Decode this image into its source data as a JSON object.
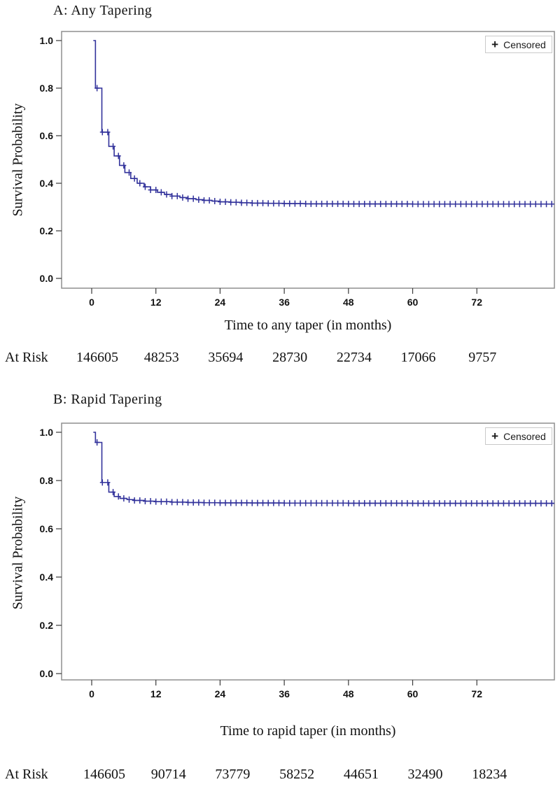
{
  "styles": {
    "curve_color": "#32329b",
    "frame_color": "#8f8f8f",
    "tick_color": "#3a3a3a",
    "text_color": "#111111",
    "legend_border_color": "#c9c9c9",
    "background": "#ffffff"
  },
  "chart_data": [
    {
      "type": "line",
      "subtype": "kaplan-meier-step-curve",
      "title": "A: Any Tapering",
      "xlabel": "Time to any taper (in months)",
      "ylabel": "Survival Probability",
      "xlim": [
        -5.6,
        86.5
      ],
      "ylim": [
        0.0,
        1.0
      ],
      "x_ticks": [
        0,
        12,
        24,
        36,
        48,
        60,
        72
      ],
      "y_ticks": [
        0.0,
        0.2,
        0.4,
        0.6,
        0.8,
        1.0
      ],
      "grid": false,
      "legend": {
        "marker": "+",
        "label": "Censored",
        "position": "top-right-inset"
      },
      "series": [
        {
          "name": "Survival",
          "steps": [
            [
              0.3,
              1.0
            ],
            [
              0.7,
              0.8
            ],
            [
              1.9,
              0.615
            ],
            [
              3.2,
              0.555
            ],
            [
              4.2,
              0.515
            ],
            [
              5.2,
              0.475
            ],
            [
              6.2,
              0.445
            ],
            [
              7.3,
              0.42
            ],
            [
              8.5,
              0.4
            ],
            [
              9.8,
              0.385
            ],
            [
              11,
              0.372
            ],
            [
              12.3,
              0.362
            ],
            [
              13.6,
              0.353
            ],
            [
              15,
              0.346
            ],
            [
              16.5,
              0.34
            ],
            [
              18,
              0.335
            ],
            [
              19.5,
              0.331
            ],
            [
              21,
              0.328
            ],
            [
              22.5,
              0.325
            ],
            [
              24,
              0.322
            ],
            [
              26,
              0.32
            ],
            [
              28,
              0.318
            ],
            [
              30,
              0.3165
            ],
            [
              33,
              0.3155
            ],
            [
              36,
              0.3145
            ],
            [
              40,
              0.3135
            ],
            [
              48,
              0.313
            ],
            [
              60,
              0.3125
            ]
          ]
        }
      ],
      "censor_marks_monthly": {
        "from": 1,
        "to": 86,
        "step": 1
      },
      "at_risk": {
        "label": "At Risk",
        "times": [
          0,
          12,
          24,
          36,
          48,
          60,
          72
        ],
        "values": [
          "146605",
          "48253",
          "35694",
          "28730",
          "22734",
          "17066",
          "9757"
        ]
      }
    },
    {
      "type": "line",
      "subtype": "kaplan-meier-step-curve",
      "title": "B: Rapid Tapering",
      "xlabel": "Time to rapid taper (in months)",
      "ylabel": "Survival Probability",
      "xlim": [
        -5.6,
        86.5
      ],
      "ylim": [
        0.0,
        1.0
      ],
      "x_ticks": [
        0,
        12,
        24,
        36,
        48,
        60,
        72
      ],
      "y_ticks": [
        0.0,
        0.2,
        0.4,
        0.6,
        0.8,
        1.0
      ],
      "grid": false,
      "legend": {
        "marker": "+",
        "label": "Censored",
        "position": "top-right-inset"
      },
      "series": [
        {
          "name": "Survival",
          "steps": [
            [
              0.3,
              1.0
            ],
            [
              0.7,
              0.958
            ],
            [
              1.9,
              0.792
            ],
            [
              3.2,
              0.752
            ],
            [
              4.2,
              0.734
            ],
            [
              5.3,
              0.726
            ],
            [
              6.6,
              0.721
            ],
            [
              8,
              0.7175
            ],
            [
              10,
              0.7145
            ],
            [
              12,
              0.7125
            ],
            [
              15,
              0.7105
            ],
            [
              18,
              0.709
            ],
            [
              21,
              0.708
            ],
            [
              24,
              0.7075
            ],
            [
              30,
              0.707
            ],
            [
              36,
              0.7065
            ],
            [
              48,
              0.706
            ],
            [
              60,
              0.7055
            ]
          ]
        }
      ],
      "censor_marks_monthly": {
        "from": 1,
        "to": 86,
        "step": 1
      },
      "at_risk": {
        "label": "At Risk",
        "times": [
          0,
          12,
          24,
          36,
          48,
          60,
          72
        ],
        "values": [
          "146605",
          "90714",
          "73779",
          "58252",
          "44651",
          "32490",
          "18234"
        ]
      }
    }
  ]
}
